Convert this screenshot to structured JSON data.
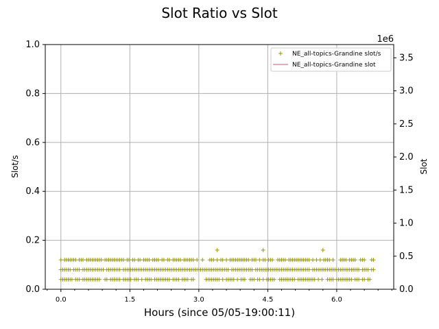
{
  "chart_data": {
    "type": "scatter",
    "title": "Slot Ratio vs Slot",
    "xlabel": "Hours (since 05/05-19:00:11)",
    "ylabel_left": "Slot/s",
    "ylabel_right": "Slot",
    "right_axis_multiplier": "1e6",
    "xlim": [
      -0.34,
      7.24
    ],
    "ylim_left": [
      0,
      1.0
    ],
    "ylim_right": [
      0,
      3.7
    ],
    "x_ticks": [
      "0.0",
      "1.5",
      "3.0",
      "4.5",
      "6.0"
    ],
    "x_tick_values": [
      0,
      1.5,
      3.0,
      4.5,
      6.0
    ],
    "y_ticks_left": [
      "0.0",
      "0.2",
      "0.4",
      "0.6",
      "0.8",
      "1.0"
    ],
    "y_tick_values_left": [
      0,
      0.2,
      0.4,
      0.6,
      0.8,
      1.0
    ],
    "y_ticks_right": [
      "0.0",
      "0.5",
      "1.0",
      "1.5",
      "2.0",
      "2.5",
      "3.0",
      "3.5"
    ],
    "y_tick_values_right": [
      0,
      0.5,
      1.0,
      1.5,
      2.0,
      2.5,
      3.0,
      3.5
    ],
    "grid": true,
    "legend_position": "top-right",
    "legend": [
      {
        "label": "NE_all-topics-Grandine slot/s",
        "marker": "+",
        "color": "#999900"
      },
      {
        "label": "NE_all-topics-Grandine slot",
        "marker": "line",
        "color": "#e88a96"
      }
    ],
    "series": [
      {
        "name": "NE_all-topics-Grandine slot/s",
        "axis": "left",
        "color": "#999900",
        "x_range": [
          0,
          6.8
        ],
        "levels": [
          0.04,
          0.08,
          0.12
        ],
        "outliers": [
          {
            "x": 3.4,
            "y": 0.16
          },
          {
            "x": 4.4,
            "y": 0.16
          },
          {
            "x": 5.7,
            "y": 0.16
          }
        ]
      },
      {
        "name": "NE_all-topics-Grandine slot",
        "axis": "right",
        "color": "#e88a96",
        "values": []
      }
    ]
  }
}
